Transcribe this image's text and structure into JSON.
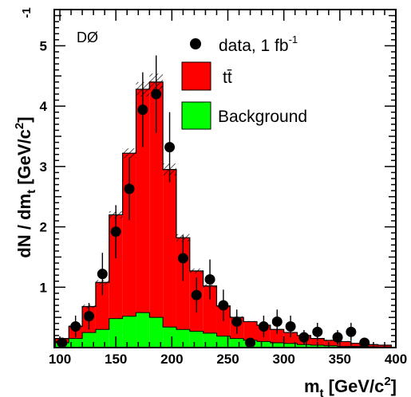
{
  "chart_data": {
    "type": "bar",
    "experiment_label": "DØ",
    "xlabel": {
      "main": "m",
      "sub": "t",
      "rest": " [GeV/c",
      "sup": "2",
      "end": "]"
    },
    "ylabel": {
      "main": "dN / dm",
      "sub": "t",
      "rest": " [GeV/c",
      "sup": "2",
      "end": "]"
    },
    "ylabel_exponent": "-1",
    "xlim": [
      95,
      400
    ],
    "ylim": [
      0,
      5.6
    ],
    "x_ticks": [
      100,
      150,
      200,
      250,
      300,
      350,
      400
    ],
    "y_ticks": [
      1,
      2,
      3,
      4,
      5
    ],
    "bin_width": 12,
    "bin_edges": [
      96,
      108,
      120,
      132,
      144,
      156,
      168,
      180,
      192,
      204,
      216,
      228,
      240,
      252,
      264,
      276,
      288,
      300,
      312,
      324,
      336,
      348,
      360,
      372,
      384,
      396
    ],
    "background": [
      0.08,
      0.15,
      0.25,
      0.3,
      0.48,
      0.52,
      0.58,
      0.5,
      0.34,
      0.3,
      0.27,
      0.24,
      0.19,
      0.15,
      0.12,
      0.1,
      0.08,
      0.07,
      0.05,
      0.04,
      0.03,
      0.02,
      0.02,
      0.015,
      0.01
    ],
    "total": [
      0.15,
      0.35,
      0.68,
      1.08,
      2.2,
      3.22,
      4.28,
      4.4,
      2.95,
      1.82,
      1.27,
      1.02,
      0.69,
      0.5,
      0.43,
      0.37,
      0.3,
      0.25,
      0.2,
      0.15,
      0.12,
      0.1,
      0.07,
      0.05,
      0.04
    ],
    "total_uncertainty": [
      0.01,
      0.02,
      0.03,
      0.04,
      0.06,
      0.08,
      0.12,
      0.14,
      0.1,
      0.06,
      0.04,
      0.03,
      0.02,
      0.02,
      0.01,
      0.01,
      0.01,
      0.01,
      0.01,
      0.01,
      0.01,
      0.01,
      0.0,
      0.0,
      0.0
    ],
    "data_points": [
      {
        "x": 102,
        "y": 0.08,
        "err": 0.06
      },
      {
        "x": 114,
        "y": 0.35,
        "err": 0.18
      },
      {
        "x": 126,
        "y": 0.52,
        "err": 0.22
      },
      {
        "x": 138,
        "y": 1.22,
        "err": 0.35
      },
      {
        "x": 150,
        "y": 1.92,
        "err": 0.44
      },
      {
        "x": 162,
        "y": 2.63,
        "err": 0.52
      },
      {
        "x": 174,
        "y": 3.94,
        "err": 0.62
      },
      {
        "x": 186,
        "y": 4.2,
        "err": 0.64
      },
      {
        "x": 198,
        "y": 3.32,
        "err": 0.58
      },
      {
        "x": 210,
        "y": 1.48,
        "err": 0.38
      },
      {
        "x": 222,
        "y": 0.87,
        "err": 0.29
      },
      {
        "x": 234,
        "y": 1.13,
        "err": 0.33
      },
      {
        "x": 246,
        "y": 0.7,
        "err": 0.26
      },
      {
        "x": 258,
        "y": 0.43,
        "err": 0.2
      },
      {
        "x": 270,
        "y": 0.08,
        "err": 0.06
      },
      {
        "x": 282,
        "y": 0.35,
        "err": 0.18
      },
      {
        "x": 294,
        "y": 0.43,
        "err": 0.2
      },
      {
        "x": 306,
        "y": 0.35,
        "err": 0.18
      },
      {
        "x": 318,
        "y": 0.17,
        "err": 0.12
      },
      {
        "x": 330,
        "y": 0.26,
        "err": 0.15
      },
      {
        "x": 348,
        "y": 0.17,
        "err": 0.12
      },
      {
        "x": 360,
        "y": 0.26,
        "err": 0.15
      },
      {
        "x": 372,
        "y": 0.08,
        "err": 0.06
      }
    ],
    "legend": {
      "placement": "top-right",
      "entries": [
        {
          "kind": "marker",
          "label": "data, 1 fb",
          "label_sup": "-1"
        },
        {
          "kind": "box",
          "label": "tt̄",
          "color": "#ff0000"
        },
        {
          "kind": "box",
          "label": "Background",
          "color": "#00ff00"
        }
      ]
    },
    "colors": {
      "signal": "#ff0000",
      "background": "#00ff00",
      "data": "#000000"
    }
  }
}
